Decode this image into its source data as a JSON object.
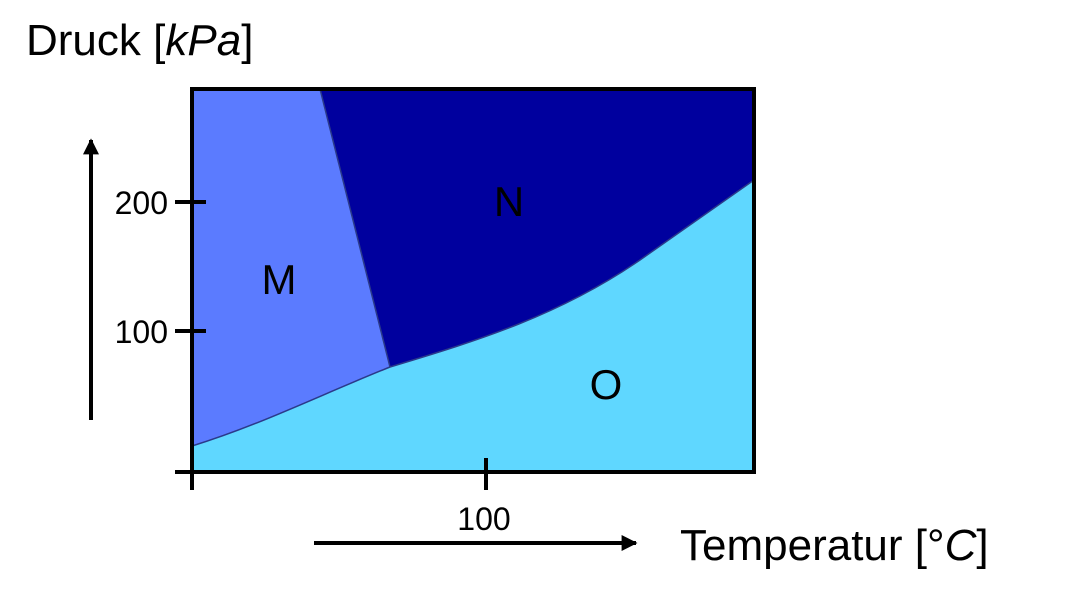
{
  "y_axis": {
    "title_main": "Druck [",
    "title_unit": "kPa",
    "title_end": "]",
    "ticks": [
      "200",
      "100"
    ]
  },
  "x_axis": {
    "title_main": "Temperatur [°",
    "title_unit": "C",
    "title_end": "]",
    "ticks": [
      "100"
    ]
  },
  "regions": {
    "m": "M",
    "n": "N",
    "o": "O"
  },
  "colors": {
    "region_m": "#5b7bff",
    "region_n": "#00009e",
    "region_o": "#5fd7ff",
    "border": "#000000"
  }
}
